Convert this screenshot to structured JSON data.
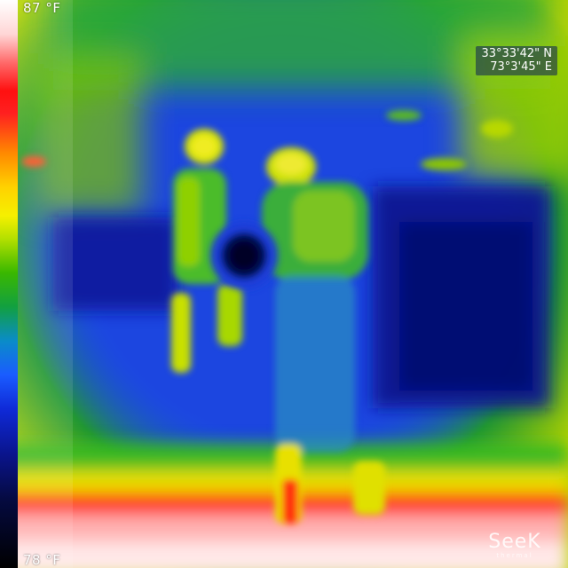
{
  "scale": {
    "max_label": "87 °F",
    "min_label": "78 °F"
  },
  "gps": {
    "latitude": "33°33'42\" N",
    "longitude": "73°3'45\" E"
  },
  "brand": {
    "name": "SeeK",
    "sub": "thermal"
  },
  "palette": {
    "hot": "#ff1010",
    "warm": "#ffd200",
    "mid": "#3ab800",
    "cool": "#1a5cff",
    "cold": "#050a40"
  }
}
